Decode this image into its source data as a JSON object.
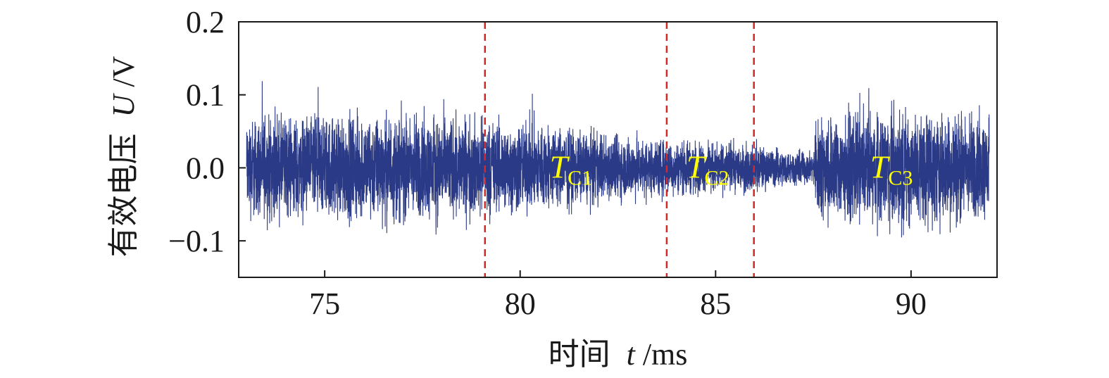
{
  "chart_data": {
    "type": "line",
    "title": "",
    "xlabel_cjk": "时间",
    "xlabel_var": "t",
    "xlabel_unit": "/ms",
    "ylabel_cjk": "有效电压",
    "ylabel_var": "U",
    "ylabel_unit": "/V",
    "xlim": [
      72.8,
      92.2
    ],
    "ylim": [
      -0.15,
      0.2
    ],
    "xticks": [
      75,
      80,
      85,
      90
    ],
    "xtick_labels": [
      "75",
      "80",
      "85",
      "90"
    ],
    "yticks": [
      -0.1,
      0.0,
      0.1,
      0.2
    ],
    "ytick_labels": [
      "−0.1",
      "0.0",
      "0.1",
      "0.2"
    ],
    "grid": false,
    "series": [
      {
        "x_start": 73.0,
        "x_end": 92.0,
        "color": "#2b3a86",
        "envelope": [
          {
            "x": 73.0,
            "amp": 0.095
          },
          {
            "x": 76.0,
            "amp": 0.1
          },
          {
            "x": 78.0,
            "amp": 0.1
          },
          {
            "x": 79.1,
            "amp": 0.09
          },
          {
            "x": 80.5,
            "amp": 0.085
          },
          {
            "x": 81.5,
            "amp": 0.07
          },
          {
            "x": 83.0,
            "amp": 0.058
          },
          {
            "x": 84.0,
            "amp": 0.05
          },
          {
            "x": 85.0,
            "amp": 0.045
          },
          {
            "x": 86.0,
            "amp": 0.045
          },
          {
            "x": 86.6,
            "amp": 0.035
          },
          {
            "x": 87.5,
            "amp": 0.03
          },
          {
            "x": 87.6,
            "amp": 0.095
          },
          {
            "x": 90.0,
            "amp": 0.11
          },
          {
            "x": 92.0,
            "amp": 0.1
          }
        ]
      }
    ],
    "vlines": [
      79.1,
      83.75,
      85.98
    ],
    "vline_color": "#d62728",
    "annotations": [
      {
        "main": "T",
        "sub": "C1",
        "x": 81.3,
        "y": 0.0
      },
      {
        "main": "T",
        "sub": "C2",
        "x": 84.8,
        "y": 0.0
      },
      {
        "main": "T",
        "sub": "C3",
        "x": 89.5,
        "y": 0.0
      }
    ],
    "annotation_color": "#ffff00"
  }
}
